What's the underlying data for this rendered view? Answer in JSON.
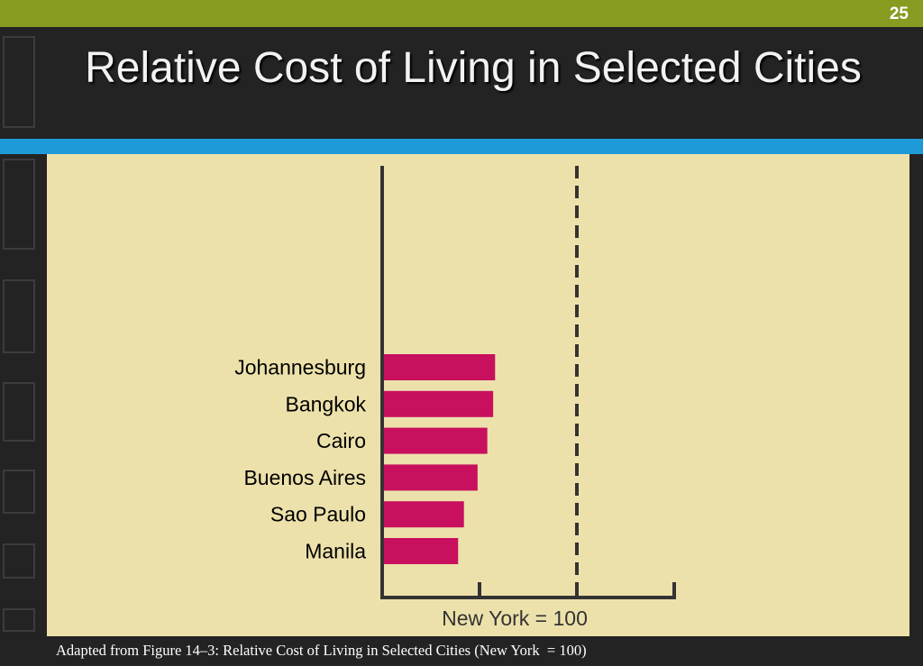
{
  "slide": {
    "number": "25",
    "title": "Relative Cost of Living in Selected Cities",
    "caption": "Adapted from Figure 14–3: Relative Cost of Living in Selected Cities (New York  = 100)"
  },
  "colors": {
    "top_bar": "#869b1f",
    "band": "#1f9ad8",
    "background": "#232323",
    "plot_bg": "#ede1ab",
    "bar": "#c8105f",
    "axis": "#333333"
  },
  "chart_data": {
    "type": "bar",
    "orientation": "horizontal",
    "categories": [
      "Johannesburg",
      "Bangkok",
      "Cairo",
      "Buenos Aires",
      "Sao Paulo",
      "Manila"
    ],
    "values": [
      58,
      57,
      54,
      49,
      42,
      39
    ],
    "xlim": [
      0,
      150
    ],
    "reference_line": {
      "value": 100,
      "style": "dashed"
    },
    "xlabel": "New York = 100",
    "grid": false,
    "legend": "none"
  }
}
